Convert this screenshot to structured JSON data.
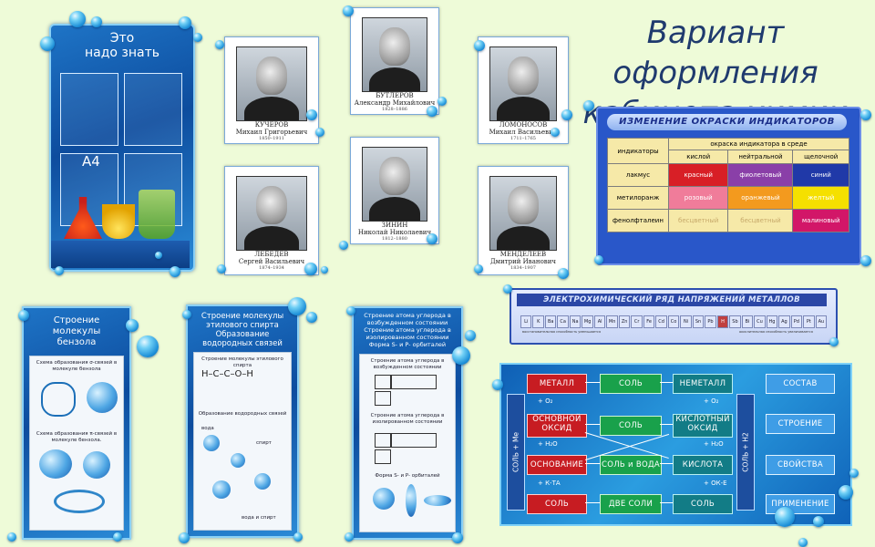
{
  "title": {
    "line1": "Вариант оформления",
    "line2": "кабинета химии"
  },
  "know_stand": {
    "title_line1": "Это",
    "title_line2": "надо знать",
    "a4": "А4"
  },
  "portraits": [
    {
      "id": "kucherov",
      "surname": "КУЧЕРОВ",
      "name": "Михаил Григорьевич",
      "years": "1850–1911"
    },
    {
      "id": "butlerov",
      "surname": "БУТЛЕРОВ",
      "name": "Александр Михайлович",
      "years": "1828–1886"
    },
    {
      "id": "lomonosov",
      "surname": "ЛОМОНОСОВ",
      "name": "Михаил Васильевич",
      "years": "1711–1765"
    },
    {
      "id": "lebedev",
      "surname": "ЛЕБЕДЕВ",
      "name": "Сергей Васильевич",
      "years": "1874–1934"
    },
    {
      "id": "zinin",
      "surname": "ЗИНИН",
      "name": "Николай Николаевич",
      "years": "1812–1880"
    },
    {
      "id": "mendeleev",
      "surname": "МЕНДЕЛЕЕВ",
      "name": "Дмитрий Иванович",
      "years": "1834–1907"
    }
  ],
  "indicators": {
    "title": "ИЗМЕНЕНИЕ ОКРАСКИ ИНДИКАТОРОВ",
    "col_indicator": "индикаторы",
    "col_group": "окраска индикатора в среде",
    "cols": [
      "кислой",
      "нейтральной",
      "щелочной"
    ],
    "rows": [
      {
        "name": "лакмус",
        "cells": [
          {
            "t": "красный",
            "c": "#d81f26",
            "f": "#ffffff"
          },
          {
            "t": "фиолетовый",
            "c": "#8a3fa8",
            "f": "#ffffff"
          },
          {
            "t": "синий",
            "c": "#2039a8",
            "f": "#ffffff"
          }
        ]
      },
      {
        "name": "метилоранж",
        "cells": [
          {
            "t": "розовый",
            "c": "#f07c9a",
            "f": "#ffffff"
          },
          {
            "t": "оранжевый",
            "c": "#f39a1e",
            "f": "#ffffff"
          },
          {
            "t": "желтый",
            "c": "#f5e000",
            "f": "#ffffff"
          }
        ]
      },
      {
        "name": "фенолфталеин",
        "cells": [
          {
            "t": "бесцветный",
            "c": "#f6e9a8",
            "f": "#c7a96a"
          },
          {
            "t": "бесцветный",
            "c": "#f6e9a8",
            "f": "#c7a96a"
          },
          {
            "t": "малиновый",
            "c": "#d21668",
            "f": "#ffffff"
          }
        ]
      }
    ]
  },
  "electro": {
    "title": "ЭЛЕКТРОХИМИЧЕСКИЙ РЯД НАПРЯЖЕНИЙ МЕТАЛЛОВ",
    "elements": [
      "Li",
      "K",
      "Ba",
      "Ca",
      "Na",
      "Mg",
      "Al",
      "Mn",
      "Zn",
      "Cr",
      "Fe",
      "Cd",
      "Co",
      "Ni",
      "Sn",
      "Pb",
      "H",
      "Sb",
      "Bi",
      "Cu",
      "Hg",
      "Ag",
      "Pd",
      "Pt",
      "Au"
    ],
    "cap_left": "восстановительная способность уменьшается",
    "cap_right": "окислительная способность увеличивается"
  },
  "scheme": {
    "left_bar": "СОЛЬ + Me",
    "right_bar": "СОЛЬ + H2",
    "col1": [
      "МЕТАЛЛ",
      "ОСНОВНОЙ ОКСИД",
      "ОСНОВАНИЕ",
      "СОЛЬ"
    ],
    "col2": [
      "СОЛЬ",
      "СОЛЬ",
      "СОЛЬ и ВОДА",
      "ДВЕ СОЛИ"
    ],
    "col3": [
      "НЕМЕТАЛЛ",
      "КИСЛОТНЫЙ ОКСИД",
      "КИСЛОТА",
      "СОЛЬ"
    ],
    "col4": [
      "СОСТАВ",
      "СТРОЕНИЕ",
      "СВОЙСТВА",
      "ПРИМЕНЕНИЕ"
    ],
    "ops_left": [
      "+ O₂",
      "+ H₂O",
      "+ К-ТА"
    ],
    "ops_right": [
      "+ O₂",
      "+ H₂O",
      "+ ОК-Е"
    ]
  },
  "benzene": {
    "title_line1": "Строение",
    "title_line2": "молекулы",
    "title_line3": "бензола",
    "text1": "Схема образования σ-связей в молекуле бензола",
    "text2": "Схема образования π-связей в молекуле бензола."
  },
  "ethanol": {
    "title_line1": "Строение молекулы",
    "title_line2": "этилового спирта",
    "title_line3": "Образование",
    "title_line4": "водородных связей",
    "text1": "Строение молекулы этилового спирта",
    "text2": "Образование водородных связей",
    "l_water": "вода",
    "l_alcohol": "спирт",
    "l_mix": "вода и спирт"
  },
  "carbon": {
    "title_line1": "Строение атома углерода в",
    "title_line2": "возбужденном состоянии",
    "title_line3": "Строение атома углерода в",
    "title_line4": "изолированном состоянии",
    "title_line5": "Форма S- и P- орбиталей",
    "text1": "Строение атома углерода в возбужденном состоянии",
    "text2": "Строение атома углерода в изолированном состоянии",
    "text3": "Форма S- и P- орбиталей"
  }
}
